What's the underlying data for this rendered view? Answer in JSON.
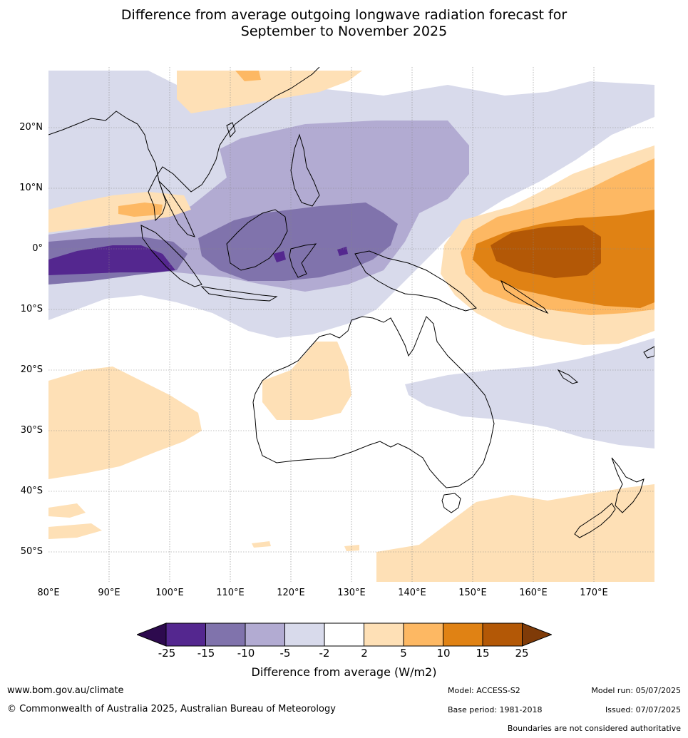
{
  "title_line1": "Difference from average outgoing longwave radiation forecast for",
  "title_line2": "September to November 2025",
  "lat_labels": [
    "20°N",
    "10°N",
    "0°",
    "10°S",
    "20°S",
    "30°S",
    "40°S",
    "50°S"
  ],
  "lon_labels": [
    "80°E",
    "90°E",
    "100°E",
    "110°E",
    "120°E",
    "130°E",
    "140°E",
    "150°E",
    "160°E",
    "170°E"
  ],
  "colorbar": {
    "ticks": [
      "-25",
      "-15",
      "-10",
      "-5",
      "-2",
      "2",
      "5",
      "10",
      "15",
      "25"
    ],
    "colors": [
      "#2d0a4e",
      "#54278f",
      "#8073ac",
      "#b2abd2",
      "#d8daeb",
      "#ffffff",
      "#fee0b6",
      "#fdb863",
      "#e08214",
      "#b35806",
      "#7f3b08"
    ],
    "label": "Difference from average (W/m2)"
  },
  "footer": {
    "website": "www.bom.gov.au/climate",
    "copyright": "© Commonwealth of Australia 2025, Australian Bureau of Meteorology",
    "model": "Model: ACCESS-S2",
    "base_period": "Base period: 1981-2018",
    "model_run": "Model run: 05/07/2025",
    "issued": "Issued: 07/07/2025",
    "disclaimer": "Boundaries are not considered authoritative"
  },
  "map": {
    "extent": {
      "lon_min": 80,
      "lon_max": 180,
      "lat_min": -55,
      "lat_max": 30
    },
    "land_outline_color": "#000000",
    "gridline_color": "#888888"
  }
}
